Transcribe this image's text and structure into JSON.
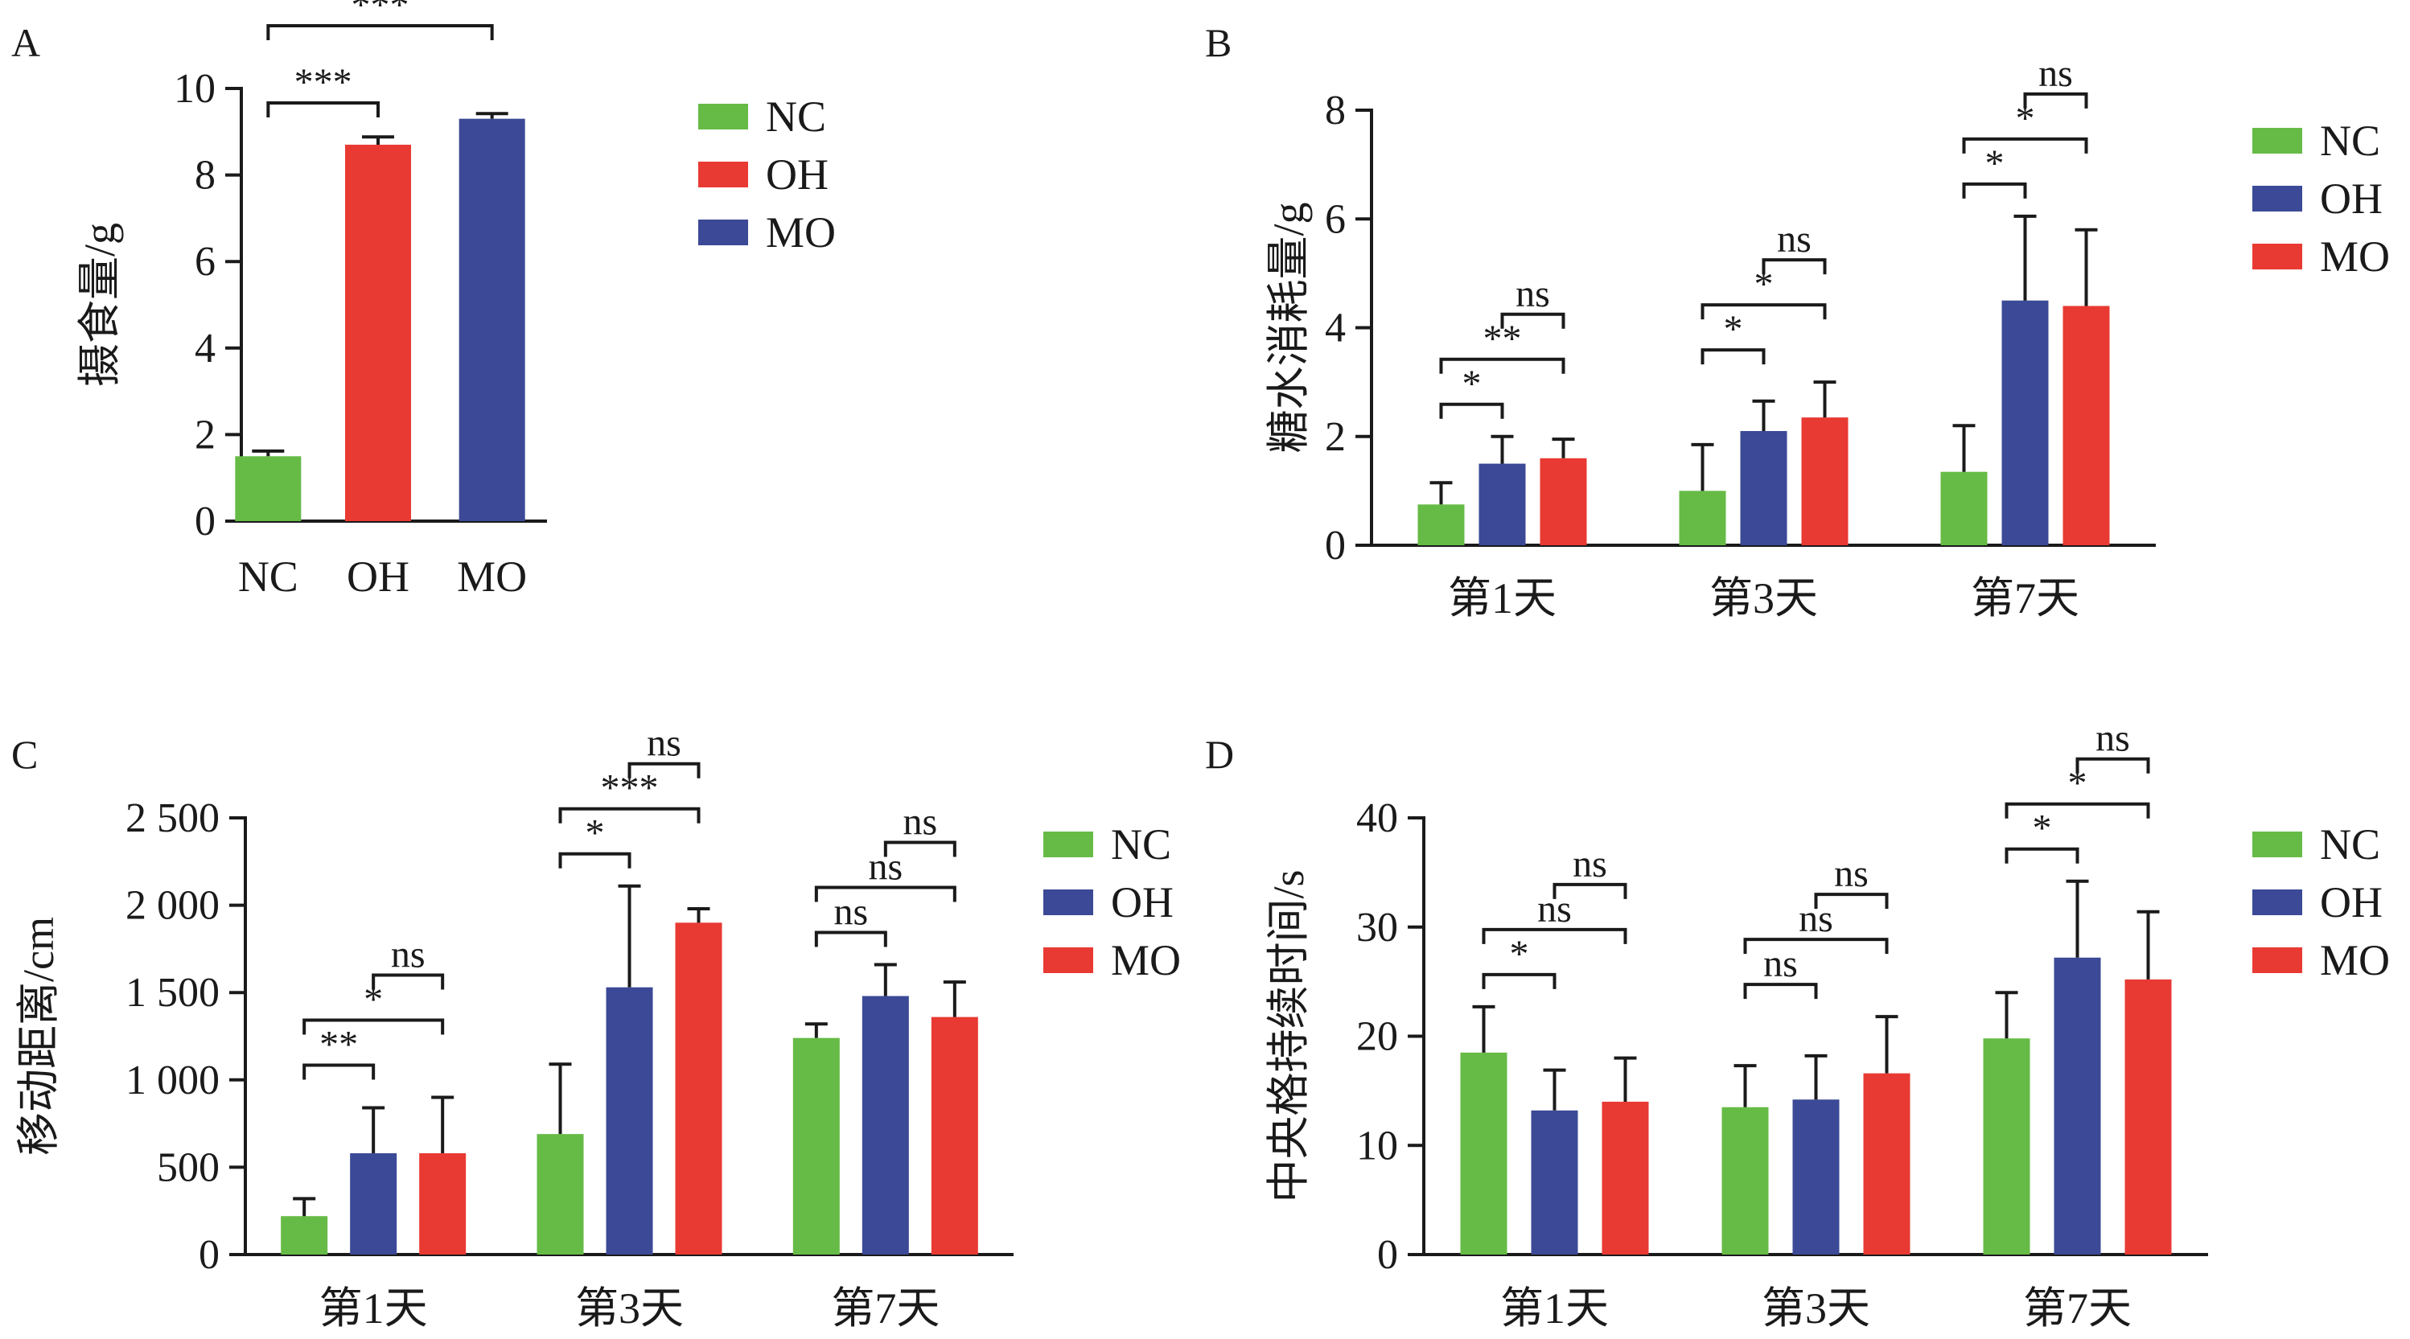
{
  "chart_data": [
    {
      "panel": "A",
      "type": "bar",
      "ylabel": "摄食量/g",
      "ylim": [
        0,
        10
      ],
      "yticks": [
        {
          "v": 0,
          "label": "0"
        },
        {
          "v": 2,
          "label": "2"
        },
        {
          "v": 4,
          "label": "4"
        },
        {
          "v": 6,
          "label": "6"
        },
        {
          "v": 8,
          "label": "8"
        },
        {
          "v": 10,
          "label": "10"
        }
      ],
      "categories": [
        "NC",
        "OH",
        "MO"
      ],
      "bar_colors": [
        "#66bb46",
        "#e83a33",
        "#3b4996"
      ],
      "values": [
        1.5,
        8.7,
        9.3
      ],
      "errors": [
        0.12,
        0.18,
        0.12
      ],
      "legend": [
        {
          "label": "NC",
          "color": "#66bb46"
        },
        {
          "label": "OH",
          "color": "#e83a33"
        },
        {
          "label": "MO",
          "color": "#3b4996"
        }
      ],
      "significance": [
        {
          "from": 0,
          "to": 1,
          "label": "***"
        },
        {
          "from": 0,
          "to": 2,
          "label": "***"
        }
      ]
    },
    {
      "panel": "B",
      "type": "bar",
      "ylabel": "糖水消耗量/g",
      "ylim": [
        0,
        8
      ],
      "yticks": [
        {
          "v": 0,
          "label": "0"
        },
        {
          "v": 2,
          "label": "2"
        },
        {
          "v": 4,
          "label": "4"
        },
        {
          "v": 6,
          "label": "6"
        },
        {
          "v": 8,
          "label": "8"
        }
      ],
      "categories": [
        "第1天",
        "第3天",
        "第7天"
      ],
      "legend": [
        {
          "label": "NC",
          "color": "#66bb46"
        },
        {
          "label": "OH",
          "color": "#3b4996"
        },
        {
          "label": "MO",
          "color": "#e83a33"
        }
      ],
      "series": [
        {
          "name": "NC",
          "color": "#66bb46",
          "values": [
            0.75,
            1.0,
            1.35
          ],
          "errors": [
            0.4,
            0.85,
            0.85
          ]
        },
        {
          "name": "OH",
          "color": "#3b4996",
          "values": [
            1.5,
            2.1,
            4.5
          ],
          "errors": [
            0.5,
            0.55,
            1.55
          ]
        },
        {
          "name": "MO",
          "color": "#e83a33",
          "values": [
            1.6,
            2.35,
            4.4
          ],
          "errors": [
            0.35,
            0.65,
            1.4
          ]
        }
      ],
      "significance": [
        {
          "category": 0,
          "from": 0,
          "to": 1,
          "label": "*"
        },
        {
          "category": 0,
          "from": 0,
          "to": 2,
          "label": "**"
        },
        {
          "category": 0,
          "from": 1,
          "to": 2,
          "label": "ns"
        },
        {
          "category": 1,
          "from": 0,
          "to": 1,
          "label": "*"
        },
        {
          "category": 1,
          "from": 0,
          "to": 2,
          "label": "*"
        },
        {
          "category": 1,
          "from": 1,
          "to": 2,
          "label": "ns"
        },
        {
          "category": 2,
          "from": 0,
          "to": 1,
          "label": "*"
        },
        {
          "category": 2,
          "from": 0,
          "to": 2,
          "label": "*"
        },
        {
          "category": 2,
          "from": 1,
          "to": 2,
          "label": "ns"
        }
      ]
    },
    {
      "panel": "C",
      "type": "bar",
      "ylabel": "移动距离/cm",
      "ylim": [
        0,
        2500
      ],
      "yticks": [
        {
          "v": 0,
          "label": "0"
        },
        {
          "v": 500,
          "label": "500"
        },
        {
          "v": 1000,
          "label": "1 000"
        },
        {
          "v": 1500,
          "label": "1 500"
        },
        {
          "v": 2000,
          "label": "2 000"
        },
        {
          "v": 2500,
          "label": "2 500"
        }
      ],
      "categories": [
        "第1天",
        "第3天",
        "第7天"
      ],
      "legend": [
        {
          "label": "NC",
          "color": "#66bb46"
        },
        {
          "label": "OH",
          "color": "#3b4996"
        },
        {
          "label": "MO",
          "color": "#e83a33"
        }
      ],
      "series": [
        {
          "name": "NC",
          "color": "#66bb46",
          "values": [
            220,
            690,
            1240
          ],
          "errors": [
            100,
            400,
            80
          ]
        },
        {
          "name": "OH",
          "color": "#3b4996",
          "values": [
            580,
            1530,
            1480
          ],
          "errors": [
            260,
            580,
            180
          ]
        },
        {
          "name": "MO",
          "color": "#e83a33",
          "values": [
            580,
            1900,
            1360
          ],
          "errors": [
            320,
            80,
            200
          ]
        }
      ],
      "significance": [
        {
          "category": 0,
          "from": 0,
          "to": 1,
          "label": "**"
        },
        {
          "category": 0,
          "from": 0,
          "to": 2,
          "label": "*"
        },
        {
          "category": 0,
          "from": 1,
          "to": 2,
          "label": "ns"
        },
        {
          "category": 1,
          "from": 0,
          "to": 1,
          "label": "*"
        },
        {
          "category": 1,
          "from": 0,
          "to": 2,
          "label": "***"
        },
        {
          "category": 1,
          "from": 1,
          "to": 2,
          "label": "ns"
        },
        {
          "category": 2,
          "from": 0,
          "to": 1,
          "label": "ns"
        },
        {
          "category": 2,
          "from": 0,
          "to": 2,
          "label": "ns"
        },
        {
          "category": 2,
          "from": 1,
          "to": 2,
          "label": "ns"
        }
      ]
    },
    {
      "panel": "D",
      "type": "bar",
      "ylabel": "中央格持续时间/s",
      "ylim": [
        0,
        40
      ],
      "yticks": [
        {
          "v": 0,
          "label": "0"
        },
        {
          "v": 10,
          "label": "10"
        },
        {
          "v": 20,
          "label": "20"
        },
        {
          "v": 30,
          "label": "30"
        },
        {
          "v": 40,
          "label": "40"
        }
      ],
      "categories": [
        "第1天",
        "第3天",
        "第7天"
      ],
      "legend": [
        {
          "label": "NC",
          "color": "#66bb46"
        },
        {
          "label": "OH",
          "color": "#3b4996"
        },
        {
          "label": "MO",
          "color": "#e83a33"
        }
      ],
      "series": [
        {
          "name": "NC",
          "color": "#66bb46",
          "values": [
            18.5,
            13.5,
            19.8
          ],
          "errors": [
            4.2,
            3.8,
            4.2
          ]
        },
        {
          "name": "OH",
          "color": "#3b4996",
          "values": [
            13.2,
            14.2,
            27.2
          ],
          "errors": [
            3.7,
            4.0,
            7.0
          ]
        },
        {
          "name": "MO",
          "color": "#e83a33",
          "values": [
            14.0,
            16.6,
            25.2
          ],
          "errors": [
            4.0,
            5.2,
            6.2
          ]
        }
      ],
      "significance": [
        {
          "category": 0,
          "from": 0,
          "to": 1,
          "label": "*"
        },
        {
          "category": 0,
          "from": 0,
          "to": 2,
          "label": "ns"
        },
        {
          "category": 0,
          "from": 1,
          "to": 2,
          "label": "ns"
        },
        {
          "category": 1,
          "from": 0,
          "to": 1,
          "label": "ns"
        },
        {
          "category": 1,
          "from": 0,
          "to": 2,
          "label": "ns"
        },
        {
          "category": 1,
          "from": 1,
          "to": 2,
          "label": "ns"
        },
        {
          "category": 2,
          "from": 0,
          "to": 1,
          "label": "*"
        },
        {
          "category": 2,
          "from": 0,
          "to": 2,
          "label": "*"
        },
        {
          "category": 2,
          "from": 1,
          "to": 2,
          "label": "ns"
        }
      ]
    }
  ]
}
